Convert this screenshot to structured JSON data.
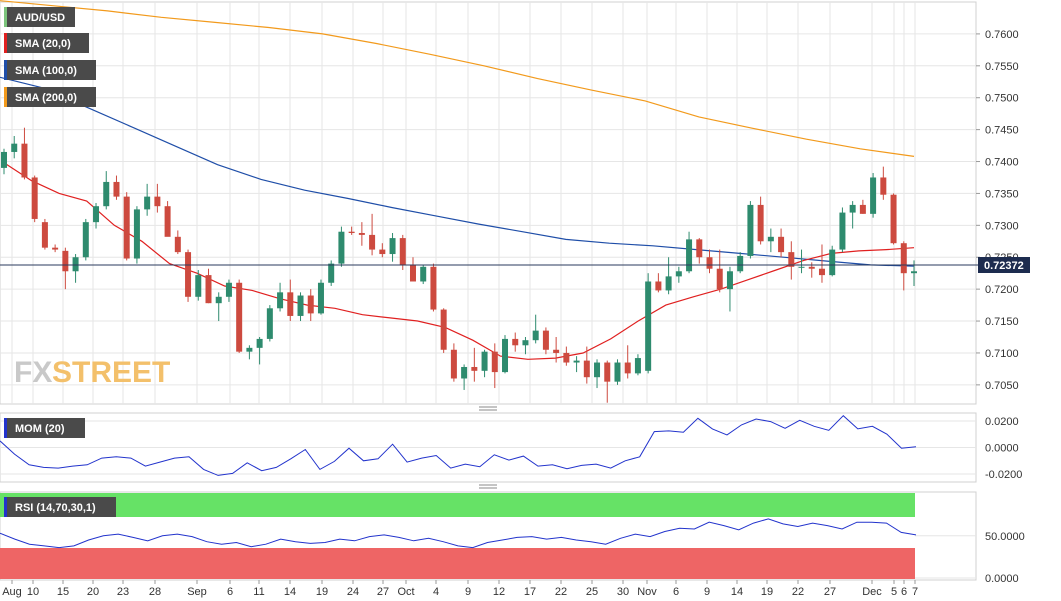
{
  "legend": {
    "symbol": "AUD/USD",
    "sma20": "SMA (20,0)",
    "sma100": "SMA (100,0)",
    "sma200": "SMA (200,0)",
    "mom": "MOM (20)",
    "rsi": "RSI (14,70,30,1)"
  },
  "watermark": {
    "fx": "FX",
    "street": "STREET"
  },
  "colors": {
    "up": "#2e8b6e",
    "down": "#cd4a3f",
    "sma20": "#e02020",
    "sma100": "#1f4ea8",
    "sma200": "#f29a1c",
    "mom": "#2233cc",
    "rsi": "#2233cc",
    "overbought": "#66e266",
    "oversold": "#ee6565",
    "grid": "#e6e6e6"
  },
  "price_axis": {
    "ticks": [
      "0.7600",
      "0.7550",
      "0.7500",
      "0.7450",
      "0.7400",
      "0.7350",
      "0.7300",
      "0.7250",
      "0.7200",
      "0.7150",
      "0.7100",
      "0.7050"
    ],
    "current": "0.72372"
  },
  "mom_axis": {
    "ticks": [
      "0.0200",
      "0.0000",
      "-0.0200"
    ]
  },
  "rsi_axis": {
    "ticks": [
      "50.0000",
      "0.0000"
    ]
  },
  "x_axis": {
    "labels": [
      "Aug",
      "10",
      "15",
      "20",
      "23",
      "28",
      "Sep",
      "6",
      "11",
      "14",
      "19",
      "24",
      "27",
      "Oct",
      "4",
      "9",
      "12",
      "17",
      "22",
      "25",
      "30",
      "Nov",
      "6",
      "9",
      "14",
      "19",
      "22",
      "27",
      "Dec",
      "5",
      "6",
      "7"
    ]
  },
  "chart_data": [
    {
      "type": "candlestick",
      "title": "AUD/USD",
      "ylim": [
        0.702,
        0.765
      ],
      "series": [
        {
          "name": "AUD/USD",
          "ohlc": [
            [
              0.739,
              0.742,
              0.738,
              0.7415
            ],
            [
              0.7415,
              0.744,
              0.7405,
              0.7428
            ],
            [
              0.7428,
              0.7453,
              0.7372,
              0.7375
            ],
            [
              0.7375,
              0.7378,
              0.7305,
              0.731
            ],
            [
              0.7305,
              0.731,
              0.7262,
              0.7265
            ],
            [
              0.7265,
              0.727,
              0.7258,
              0.7262
            ],
            [
              0.726,
              0.7265,
              0.72,
              0.7228
            ],
            [
              0.7228,
              0.7255,
              0.721,
              0.725
            ],
            [
              0.725,
              0.731,
              0.7245,
              0.7305
            ],
            [
              0.7305,
              0.7335,
              0.7295,
              0.733
            ],
            [
              0.733,
              0.7385,
              0.7325,
              0.7368
            ],
            [
              0.7368,
              0.7378,
              0.734,
              0.7345
            ],
            [
              0.7345,
              0.7352,
              0.7245,
              0.7248
            ],
            [
              0.7248,
              0.733,
              0.724,
              0.7325
            ],
            [
              0.7325,
              0.7365,
              0.7315,
              0.7345
            ],
            [
              0.7345,
              0.7365,
              0.732,
              0.733
            ],
            [
              0.733,
              0.7338,
              0.7285,
              0.7282
            ],
            [
              0.7282,
              0.7292,
              0.7255,
              0.7258
            ],
            [
              0.7258,
              0.7262,
              0.718,
              0.7188
            ],
            [
              0.7188,
              0.723,
              0.7182,
              0.7222
            ],
            [
              0.7222,
              0.7232,
              0.7178,
              0.7178
            ],
            [
              0.7178,
              0.7195,
              0.715,
              0.7188
            ],
            [
              0.7188,
              0.7215,
              0.718,
              0.721
            ],
            [
              0.721,
              0.7215,
              0.71,
              0.7102
            ],
            [
              0.7102,
              0.7112,
              0.709,
              0.7108
            ],
            [
              0.7108,
              0.7125,
              0.7082,
              0.7122
            ],
            [
              0.7122,
              0.7175,
              0.7118,
              0.717
            ],
            [
              0.717,
              0.721,
              0.7165,
              0.7195
            ],
            [
              0.7195,
              0.7215,
              0.715,
              0.7158
            ],
            [
              0.7158,
              0.7195,
              0.715,
              0.719
            ],
            [
              0.719,
              0.72,
              0.715,
              0.7162
            ],
            [
              0.7162,
              0.7215,
              0.716,
              0.721
            ],
            [
              0.721,
              0.7245,
              0.7205,
              0.724
            ],
            [
              0.724,
              0.7298,
              0.7235,
              0.729
            ],
            [
              0.729,
              0.7298,
              0.7285,
              0.7288
            ],
            [
              0.7288,
              0.7305,
              0.7268,
              0.7285
            ],
            [
              0.7285,
              0.7318,
              0.7253,
              0.7262
            ],
            [
              0.7262,
              0.7272,
              0.725,
              0.7255
            ],
            [
              0.7255,
              0.7288,
              0.7243,
              0.728
            ],
            [
              0.728,
              0.7285,
              0.723,
              0.7238
            ],
            [
              0.7238,
              0.725,
              0.7215,
              0.7212
            ],
            [
              0.7212,
              0.7238,
              0.7208,
              0.7235
            ],
            [
              0.7235,
              0.724,
              0.7165,
              0.7168
            ],
            [
              0.7168,
              0.717,
              0.71,
              0.7105
            ],
            [
              0.7105,
              0.7115,
              0.7055,
              0.706
            ],
            [
              0.706,
              0.7082,
              0.7042,
              0.7078
            ],
            [
              0.7078,
              0.7108,
              0.7055,
              0.7072
            ],
            [
              0.7072,
              0.7105,
              0.7062,
              0.7102
            ],
            [
              0.7102,
              0.7115,
              0.7045,
              0.707
            ],
            [
              0.707,
              0.7128,
              0.7068,
              0.7122
            ],
            [
              0.7122,
              0.7132,
              0.7102,
              0.7112
            ],
            [
              0.7112,
              0.7125,
              0.7098,
              0.712
            ],
            [
              0.712,
              0.716,
              0.7115,
              0.7135
            ],
            [
              0.7135,
              0.714,
              0.7098,
              0.7105
            ],
            [
              0.7105,
              0.7125,
              0.7085,
              0.71
            ],
            [
              0.71,
              0.711,
              0.708,
              0.7085
            ],
            [
              0.7085,
              0.7095,
              0.707,
              0.7088
            ],
            [
              0.7088,
              0.711,
              0.7052,
              0.7062
            ],
            [
              0.7062,
              0.709,
              0.7045,
              0.7085
            ],
            [
              0.7085,
              0.7088,
              0.7022,
              0.7055
            ],
            [
              0.7055,
              0.709,
              0.705,
              0.7085
            ],
            [
              0.7085,
              0.7112,
              0.706,
              0.7068
            ],
            [
              0.7068,
              0.7098,
              0.7065,
              0.7092
            ],
            [
              0.7072,
              0.7225,
              0.7068,
              0.7212
            ],
            [
              0.7212,
              0.7225,
              0.7195,
              0.7198
            ],
            [
              0.7198,
              0.725,
              0.7192,
              0.722
            ],
            [
              0.722,
              0.7235,
              0.721,
              0.7228
            ],
            [
              0.7228,
              0.729,
              0.7225,
              0.7278
            ],
            [
              0.7278,
              0.728,
              0.724,
              0.725
            ],
            [
              0.725,
              0.7262,
              0.7225,
              0.7232
            ],
            [
              0.7232,
              0.7262,
              0.7195,
              0.72
            ],
            [
              0.72,
              0.7235,
              0.7165,
              0.7228
            ],
            [
              0.7228,
              0.7258,
              0.7225,
              0.7252
            ],
            [
              0.7252,
              0.7338,
              0.7248,
              0.7332
            ],
            [
              0.7332,
              0.7345,
              0.727,
              0.7275
            ],
            [
              0.7275,
              0.7295,
              0.7258,
              0.7282
            ],
            [
              0.7282,
              0.7295,
              0.725,
              0.7258
            ],
            [
              0.7258,
              0.7275,
              0.7215,
              0.7235
            ],
            [
              0.7235,
              0.7262,
              0.7225,
              0.7235
            ],
            [
              0.7235,
              0.7242,
              0.7218,
              0.7232
            ],
            [
              0.7232,
              0.727,
              0.721,
              0.7222
            ],
            [
              0.7222,
              0.7268,
              0.722,
              0.7262
            ],
            [
              0.7262,
              0.7328,
              0.7258,
              0.732
            ],
            [
              0.732,
              0.7338,
              0.7295,
              0.7332
            ],
            [
              0.7332,
              0.734,
              0.7318,
              0.7318
            ],
            [
              0.7318,
              0.7382,
              0.7312,
              0.7375
            ],
            [
              0.7375,
              0.7392,
              0.734,
              0.7348
            ],
            [
              0.7348,
              0.735,
              0.727,
              0.7272
            ],
            [
              0.7272,
              0.7275,
              0.7198,
              0.7225
            ],
            [
              0.7225,
              0.7245,
              0.7205,
              0.7228
            ]
          ]
        },
        {
          "name": "SMA (20,0)",
          "values": [
            0.7398,
            0.737,
            0.735,
            0.7338,
            0.73,
            0.7275,
            0.724,
            0.7225,
            0.7205,
            0.7198,
            0.7185,
            0.7175,
            0.717,
            0.716,
            0.7155,
            0.715,
            0.714,
            0.712,
            0.7095,
            0.709,
            0.7092,
            0.71,
            0.7122,
            0.715,
            0.7175,
            0.7188,
            0.72,
            0.7215,
            0.723,
            0.7245,
            0.7256,
            0.726,
            0.7262,
            0.7265
          ]
        },
        {
          "name": "SMA (100,0)",
          "values": [
            0.7532,
            0.7515,
            0.7485,
            0.7455,
            0.7425,
            0.7395,
            0.7372,
            0.7355,
            0.7342,
            0.7328,
            0.7315,
            0.7302,
            0.729,
            0.7278,
            0.7272,
            0.7268,
            0.7262,
            0.7256,
            0.725,
            0.7244,
            0.7238,
            0.7236
          ]
        },
        {
          "name": "SMA (200,0)",
          "values": [
            0.7652,
            0.7644,
            0.7636,
            0.7626,
            0.7618,
            0.761,
            0.76,
            0.7585,
            0.7568,
            0.755,
            0.753,
            0.7512,
            0.7495,
            0.747,
            0.7452,
            0.7435,
            0.742,
            0.7408
          ]
        }
      ]
    },
    {
      "type": "line",
      "title": "MOM (20)",
      "ylim": [
        -0.026,
        0.026
      ],
      "series": [
        {
          "name": "MOM (20)",
          "values": [
            0.005,
            -0.005,
            -0.013,
            -0.015,
            -0.0155,
            -0.014,
            -0.013,
            -0.008,
            -0.007,
            -0.008,
            -0.014,
            -0.011,
            -0.008,
            -0.007,
            -0.0165,
            -0.021,
            -0.0195,
            -0.0115,
            -0.0175,
            -0.015,
            -0.0085,
            -0.0015,
            -0.0165,
            -0.0105,
            -0.0005,
            -0.01,
            -0.0085,
            0.0025,
            -0.011,
            -0.008,
            -0.006,
            -0.0155,
            -0.0125,
            -0.0145,
            -0.0055,
            -0.0095,
            -0.0065,
            -0.014,
            -0.013,
            -0.016,
            -0.0135,
            -0.0125,
            -0.0155,
            -0.01,
            -0.007,
            0.012,
            0.0125,
            0.0115,
            0.022,
            0.014,
            0.0095,
            0.017,
            0.0215,
            0.0195,
            0.0145,
            0.0205,
            0.016,
            0.013,
            0.024,
            0.014,
            0.016,
            0.01,
            -0.0005,
            0.0005
          ]
        }
      ]
    },
    {
      "type": "line",
      "title": "RSI (14,70,30,1)",
      "ylim": [
        0,
        100
      ],
      "series": [
        {
          "name": "RSI (14,70,30,1)",
          "values": [
            53,
            46,
            40,
            38,
            36,
            38,
            45,
            50,
            52,
            48,
            44,
            50,
            52,
            49,
            43,
            40,
            42,
            37,
            40,
            46,
            43,
            41,
            42,
            46,
            44,
            49,
            51,
            48,
            44,
            47,
            43,
            38,
            36,
            42,
            45,
            48,
            49,
            46,
            48,
            45,
            43,
            40,
            47,
            52,
            49,
            55,
            59,
            58,
            66,
            62,
            57,
            65,
            70,
            64,
            61,
            65,
            62,
            58,
            66,
            66,
            65,
            54,
            51
          ]
        }
      ]
    }
  ]
}
